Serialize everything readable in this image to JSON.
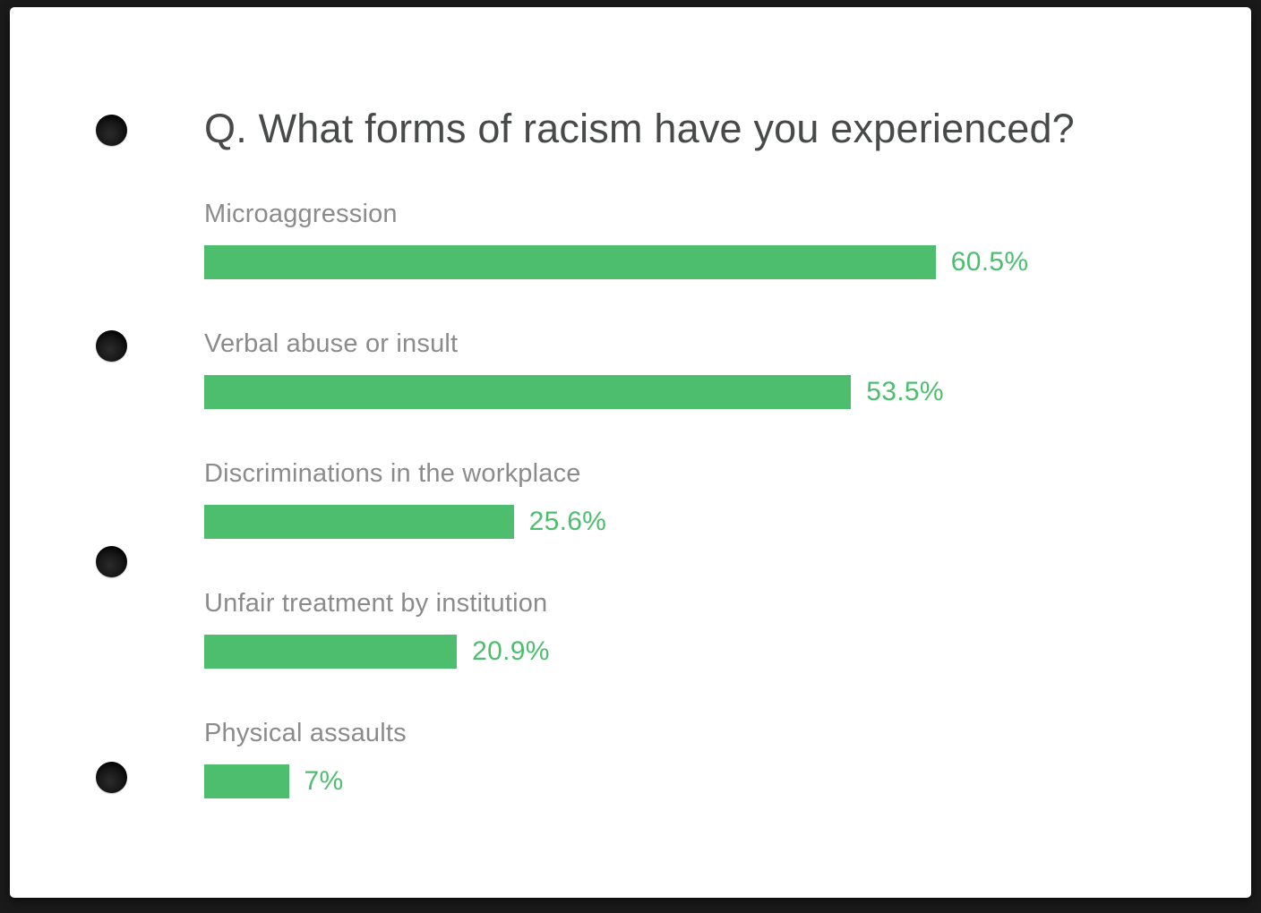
{
  "page": {
    "title": "Q. What forms of racism have you experienced?"
  },
  "chart_data": {
    "type": "bar",
    "orientation": "horizontal",
    "title": "Q. What forms of racism have you experienced?",
    "categories": [
      "Microaggression",
      "Verbal abuse or insult",
      "Discriminations in the workplace",
      "Unfair treatment by institution",
      "Physical assaults"
    ],
    "values": [
      60.5,
      53.5,
      25.6,
      20.9,
      7
    ],
    "value_labels": [
      "60.5%",
      "53.5%",
      "25.6%",
      "20.9%",
      "7%"
    ],
    "xlim": [
      0,
      100
    ],
    "grid": false,
    "legend": false,
    "bar_color": "#4cbe6e",
    "value_label_color": "#4cbe6e",
    "category_label_color": "#8b8b8b",
    "title_color": "#484a4a",
    "page_background": "#ffffff",
    "frame_background": "#1a1a1a"
  },
  "decorations": {
    "binder_hole_count": 4
  }
}
